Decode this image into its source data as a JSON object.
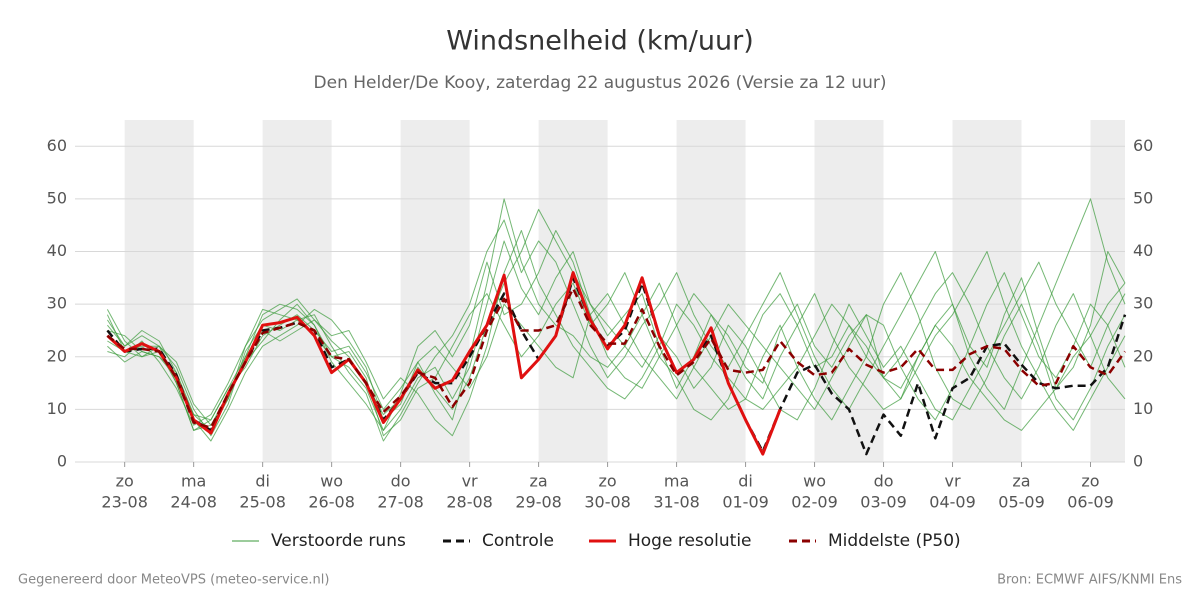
{
  "chart_data": {
    "type": "line",
    "title": "Windsnelheid (km/uur)",
    "subtitle": "Den Helder/De Kooy, zaterdag 22 augustus 2026 (Versie za 12 uur)",
    "footer_left": "Gegenereerd door MeteoVPS (meteo-service.nl)",
    "footer_right": "Bron: ECMWF AIFS/KNMI Ens",
    "xlim": [
      -0.72,
      14.5
    ],
    "xticks": [
      {
        "value": 0,
        "label": [
          "zo",
          "23-08"
        ]
      },
      {
        "value": 1,
        "label": [
          "ma",
          "24-08"
        ]
      },
      {
        "value": 2,
        "label": [
          "di",
          "25-08"
        ]
      },
      {
        "value": 3,
        "label": [
          "wo",
          "26-08"
        ]
      },
      {
        "value": 4,
        "label": [
          "do",
          "27-08"
        ]
      },
      {
        "value": 5,
        "label": [
          "vr",
          "28-08"
        ]
      },
      {
        "value": 6,
        "label": [
          "za",
          "29-08"
        ]
      },
      {
        "value": 7,
        "label": [
          "zo",
          "30-08"
        ]
      },
      {
        "value": 8,
        "label": [
          "ma",
          "31-08"
        ]
      },
      {
        "value": 9,
        "label": [
          "di",
          "01-09"
        ]
      },
      {
        "value": 10,
        "label": [
          "wo",
          "02-09"
        ]
      },
      {
        "value": 11,
        "label": [
          "do",
          "03-09"
        ]
      },
      {
        "value": 12,
        "label": [
          "vr",
          "04-09"
        ]
      },
      {
        "value": 13,
        "label": [
          "za",
          "05-09"
        ]
      },
      {
        "value": 14,
        "label": [
          "zo",
          "06-09"
        ]
      }
    ],
    "ylim": [
      0,
      65
    ],
    "yticks": [
      0,
      10,
      20,
      30,
      40,
      50,
      60
    ],
    "grid": true,
    "x": [
      -0.25,
      0,
      0.25,
      0.5,
      0.75,
      1,
      1.25,
      1.5,
      1.75,
      2,
      2.25,
      2.5,
      2.75,
      3,
      3.25,
      3.5,
      3.75,
      4,
      4.25,
      4.5,
      4.75,
      5,
      5.25,
      5.5,
      5.75,
      6,
      6.25,
      6.5,
      6.75,
      7,
      7.25,
      7.5,
      7.75,
      8,
      8.25,
      8.5,
      8.75,
      9,
      9.25,
      9.5,
      9.75,
      10,
      10.25,
      10.5,
      10.75,
      11,
      11.25,
      11.5,
      11.75,
      12,
      12.25,
      12.5,
      12.75,
      13,
      13.25,
      13.5,
      13.75,
      14,
      14.25,
      14.5
    ],
    "series": [
      {
        "name": "Verstoorde runs",
        "color": "#3a9a3a",
        "runs": [
          [
            27,
            22,
            24,
            22,
            15,
            6,
            7,
            12,
            20,
            28,
            30,
            29,
            26,
            20,
            18,
            14,
            6,
            10,
            16,
            18,
            12,
            18,
            30,
            42,
            33,
            28,
            35,
            40,
            30,
            24,
            28,
            32,
            22,
            14,
            20,
            28,
            24,
            18,
            15,
            25,
            30,
            22,
            18,
            24,
            28,
            16,
            12,
            20,
            26,
            30,
            22,
            18,
            28,
            35,
            24,
            14,
            18,
            26,
            40,
            34
          ],
          [
            22,
            19,
            21,
            20,
            17,
            9,
            8,
            14,
            18,
            24,
            26,
            28,
            25,
            21,
            22,
            17,
            10,
            14,
            19,
            13,
            8,
            20,
            34,
            50,
            38,
            30,
            26,
            24,
            20,
            18,
            22,
            28,
            34,
            26,
            18,
            14,
            10,
            12,
            20,
            26,
            18,
            12,
            8,
            14,
            20,
            30,
            36,
            28,
            18,
            12,
            10,
            16,
            24,
            30,
            22,
            12,
            8,
            14,
            22,
            28
          ],
          [
            29,
            23,
            20,
            22,
            18,
            10,
            5,
            11,
            21,
            26,
            25,
            27,
            28,
            22,
            17,
            13,
            4,
            9,
            15,
            20,
            24,
            30,
            40,
            46,
            36,
            42,
            38,
            30,
            22,
            16,
            20,
            26,
            30,
            36,
            28,
            22,
            18,
            24,
            30,
            36,
            28,
            20,
            14,
            10,
            16,
            22,
            28,
            34,
            40,
            30,
            20,
            14,
            10,
            18,
            26,
            34,
            42,
            50,
            38,
            30
          ],
          [
            21,
            20,
            23,
            19,
            14,
            7,
            9,
            15,
            22,
            27,
            29,
            31,
            27,
            24,
            25,
            19,
            12,
            16,
            13,
            8,
            5,
            12,
            22,
            36,
            44,
            34,
            28,
            22,
            18,
            14,
            12,
            16,
            22,
            30,
            26,
            20,
            16,
            12,
            10,
            14,
            18,
            24,
            30,
            26,
            20,
            16,
            14,
            20,
            26,
            22,
            16,
            12,
            8,
            6,
            10,
            14,
            20,
            24,
            30,
            34
          ],
          [
            26,
            22,
            25,
            23,
            17,
            8,
            4,
            10,
            17,
            22,
            24,
            26,
            29,
            27,
            23,
            18,
            8,
            11,
            19,
            22,
            18,
            14,
            20,
            30,
            26,
            22,
            18,
            16,
            28,
            32,
            26,
            20,
            16,
            12,
            18,
            24,
            30,
            26,
            22,
            18,
            14,
            10,
            16,
            22,
            28,
            26,
            18,
            12,
            8,
            14,
            22,
            30,
            36,
            28,
            20,
            16,
            22,
            30,
            26,
            18
          ],
          [
            23,
            21,
            22,
            22,
            19,
            11,
            7,
            13,
            19,
            23,
            27,
            30,
            26,
            19,
            15,
            11,
            6,
            13,
            22,
            25,
            20,
            26,
            38,
            28,
            30,
            36,
            44,
            38,
            28,
            20,
            16,
            14,
            20,
            26,
            32,
            28,
            22,
            16,
            12,
            20,
            26,
            32,
            24,
            18,
            14,
            10,
            12,
            18,
            24,
            28,
            34,
            40,
            30,
            22,
            16,
            10,
            6,
            12,
            18,
            24
          ],
          [
            25,
            24,
            21,
            20,
            16,
            9,
            6,
            12,
            22,
            29,
            28,
            27,
            24,
            20,
            21,
            16,
            5,
            8,
            14,
            16,
            22,
            28,
            32,
            26,
            20,
            24,
            30,
            34,
            26,
            30,
            36,
            28,
            20,
            16,
            10,
            8,
            12,
            20,
            28,
            32,
            26,
            18,
            20,
            26,
            22,
            16,
            20,
            26,
            32,
            36,
            30,
            22,
            16,
            12,
            18,
            26,
            32,
            24,
            16,
            12
          ],
          [
            28,
            21,
            20,
            21,
            15,
            6,
            8,
            14,
            20,
            25,
            23,
            25,
            27,
            23,
            20,
            15,
            9,
            12,
            18,
            14,
            10,
            16,
            26,
            34,
            40,
            48,
            42,
            36,
            30,
            26,
            22,
            18,
            24,
            20,
            14,
            18,
            26,
            22,
            16,
            10,
            8,
            14,
            22,
            30,
            24,
            18,
            22,
            16,
            10,
            8,
            14,
            20,
            26,
            32,
            38,
            30,
            24,
            18,
            26,
            32
          ]
        ]
      },
      {
        "name": "Controle",
        "color": "#111111",
        "dash": true,
        "values": [
          25,
          21,
          21.5,
          21.5,
          16.5,
          8,
          6,
          13,
          19,
          25,
          25.5,
          26.5,
          25,
          18,
          19.5,
          15,
          8,
          12,
          17,
          15,
          15,
          20,
          26,
          32,
          25,
          19.5,
          24,
          35,
          27,
          22,
          25,
          34,
          24,
          17,
          19.5,
          24,
          15,
          8,
          2,
          10,
          17,
          18.5,
          13,
          10,
          1.5,
          9,
          5,
          15,
          4.5,
          14,
          16,
          22,
          22.5,
          18.5,
          15,
          14,
          14.5,
          14.5,
          18,
          28
        ]
      },
      {
        "name": "Hoge resolutie",
        "color": "#e01010",
        "values": [
          24,
          21,
          22.5,
          21,
          16,
          8,
          5.5,
          13,
          19,
          26,
          26.5,
          27.5,
          24,
          17,
          19.5,
          15,
          7.5,
          12,
          17.5,
          14,
          15.5,
          21,
          26,
          35.5,
          16,
          19.5,
          24,
          36,
          27,
          21.5,
          26,
          35,
          24,
          17,
          19.5,
          25.5,
          15,
          8,
          1.5,
          10,
          null,
          null,
          null,
          null,
          null,
          null,
          null,
          null,
          null,
          null,
          null,
          null,
          null,
          null,
          null,
          null,
          null,
          null,
          null,
          null
        ]
      },
      {
        "name": "Middelste (P50)",
        "color": "#8b0000",
        "dash": true,
        "values": [
          24,
          21.5,
          21.5,
          21,
          16,
          7.5,
          6.5,
          13,
          19,
          24.5,
          25.5,
          26.5,
          25,
          20,
          19.5,
          15,
          9.5,
          12.5,
          17,
          16,
          10.5,
          15,
          25,
          31,
          25,
          25,
          26,
          33,
          26,
          22.5,
          22.5,
          29,
          22,
          16.5,
          19,
          23.5,
          17.5,
          17,
          17.5,
          23,
          19,
          16.5,
          17,
          21.5,
          18.5,
          17,
          18,
          21.5,
          17.5,
          17.5,
          20.5,
          22,
          21.5,
          17.5,
          14.5,
          15,
          22,
          18,
          16.5,
          21
        ]
      }
    ]
  }
}
